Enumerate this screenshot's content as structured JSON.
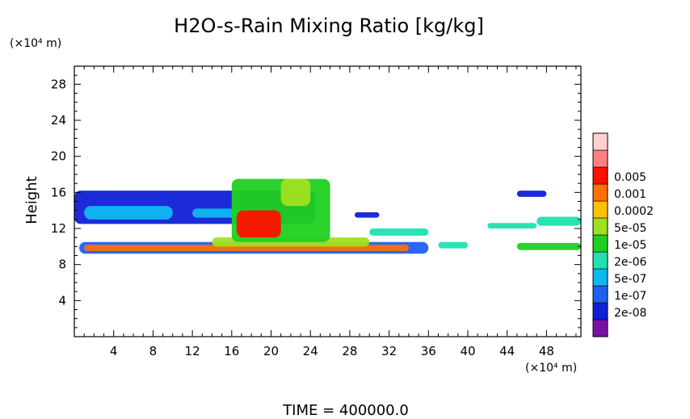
{
  "chart_data": {
    "type": "heatmap",
    "title": "H2O-s-Rain Mixing Ratio [kg/kg]",
    "ylabel": "Height",
    "y_unit": "(×10⁴ m)",
    "x_unit": "(×10⁴ m)",
    "footer": "TIME = 400000.0",
    "xlim": [
      0,
      51.5
    ],
    "ylim": [
      0,
      30
    ],
    "x_ticks": [
      "4",
      "8",
      "12",
      "16",
      "20",
      "24",
      "28",
      "32",
      "36",
      "40",
      "44",
      "48"
    ],
    "y_ticks": [
      "4",
      "8",
      "12",
      "16",
      "20",
      "24",
      "28"
    ],
    "legend": {
      "placement": "right",
      "levels": [
        "2e-08",
        "1e-07",
        "5e-07",
        "2e-06",
        "1e-05",
        "5e-05",
        "0.0002",
        "0.001",
        "0.005"
      ],
      "colors": [
        "#7a10a8",
        "#1020d8",
        "#2060f0",
        "#10b8f0",
        "#20e0b0",
        "#20d020",
        "#a0e020",
        "#ffc000",
        "#ff7000",
        "#ff1000",
        "#ff8080",
        "#ffd0d0"
      ]
    },
    "regions": [
      {
        "x": [
          0.0,
          24.5
        ],
        "y": [
          12.5,
          16.2
        ],
        "level": 1
      },
      {
        "x": [
          1.0,
          10.0
        ],
        "y": [
          13.0,
          14.5
        ],
        "level": 3
      },
      {
        "x": [
          12.0,
          20.0
        ],
        "y": [
          13.2,
          14.2
        ],
        "level": 3
      },
      {
        "x": [
          0.5,
          36.0
        ],
        "y": [
          9.2,
          10.5
        ],
        "level": 2
      },
      {
        "x": [
          1.0,
          34.0
        ],
        "y": [
          9.5,
          10.2
        ],
        "level": 8
      },
      {
        "x": [
          14.0,
          30.0
        ],
        "y": [
          10.0,
          11.0
        ],
        "level": 6
      },
      {
        "x": [
          16.0,
          26.0
        ],
        "y": [
          10.5,
          17.5
        ],
        "level": 5
      },
      {
        "x": [
          16.5,
          21.0
        ],
        "y": [
          11.0,
          14.0
        ],
        "level": 9
      },
      {
        "x": [
          21.0,
          24.0
        ],
        "y": [
          14.5,
          17.5
        ],
        "level": 6
      },
      {
        "x": [
          28.5,
          31.0
        ],
        "y": [
          13.2,
          13.8
        ],
        "level": 1
      },
      {
        "x": [
          30.0,
          36.0
        ],
        "y": [
          11.2,
          12.0
        ],
        "level": 4
      },
      {
        "x": [
          37.0,
          40.0
        ],
        "y": [
          9.8,
          10.5
        ],
        "level": 4
      },
      {
        "x": [
          42.0,
          47.0
        ],
        "y": [
          12.0,
          12.6
        ],
        "level": 4
      },
      {
        "x": [
          45.0,
          48.0
        ],
        "y": [
          15.5,
          16.2
        ],
        "level": 1
      },
      {
        "x": [
          47.0,
          51.5
        ],
        "y": [
          12.3,
          13.3
        ],
        "level": 4
      },
      {
        "x": [
          45.0,
          51.5
        ],
        "y": [
          9.6,
          10.4
        ],
        "level": 5
      }
    ]
  }
}
